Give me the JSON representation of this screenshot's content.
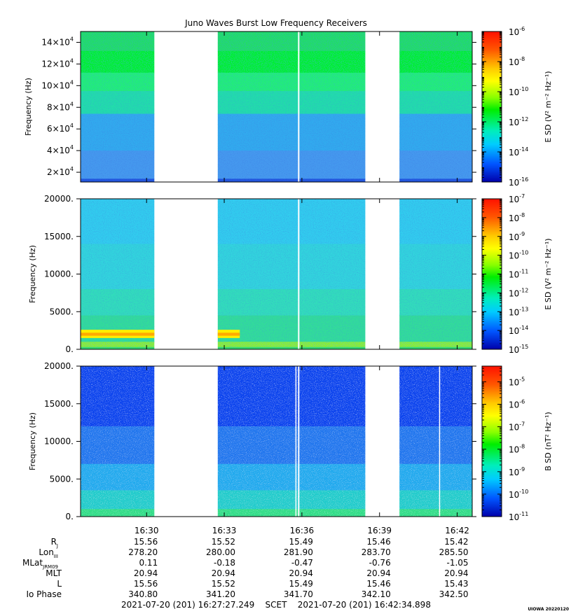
{
  "chart_data": [
    {
      "type": "heatmap",
      "title": "Juno Waves Burst Low Frequency Receivers",
      "ylabel": "Frequency (Hz)",
      "colorbar_label": "E SD (V² m⁻² Hz⁻¹)",
      "ylim": [
        11000,
        150000
      ],
      "y_ticks": [
        {
          "value": 20000,
          "mant": "2×10",
          "exp": "4"
        },
        {
          "value": 40000,
          "mant": "4×10",
          "exp": "4"
        },
        {
          "value": 60000,
          "mant": "6×10",
          "exp": "4"
        },
        {
          "value": 80000,
          "mant": "8×10",
          "exp": "4"
        },
        {
          "value": 100000,
          "mant": "10×10",
          "exp": "4"
        },
        {
          "value": 120000,
          "mant": "12×10",
          "exp": "4"
        },
        {
          "value": 140000,
          "mant": "14×10",
          "exp": "4"
        }
      ],
      "colorbar_range_log10": [
        -16,
        -6
      ],
      "colorbar_ticks": [
        {
          "log": -6,
          "label": "10",
          "exp": "-6"
        },
        {
          "log": -8,
          "label": "10",
          "exp": "-8"
        },
        {
          "log": -10,
          "label": "10",
          "exp": "-10"
        },
        {
          "log": -12,
          "label": "10",
          "exp": "-12"
        },
        {
          "log": -14,
          "label": "10",
          "exp": "-14"
        },
        {
          "log": -16,
          "label": "10",
          "exp": "-16"
        }
      ],
      "bands": [
        {
          "from": 150000,
          "to": 132000,
          "color": "#22dd66"
        },
        {
          "from": 132000,
          "to": 112000,
          "color": "#00ee33"
        },
        {
          "from": 112000,
          "to": 95000,
          "color": "#22ee77"
        },
        {
          "from": 95000,
          "to": 74000,
          "color": "#22ddaa"
        },
        {
          "from": 74000,
          "to": 40000,
          "color": "#33aaee"
        },
        {
          "from": 40000,
          "to": 14000,
          "color": "#4499ee"
        },
        {
          "from": 14000,
          "to": 11000,
          "color": "#2255dd"
        }
      ]
    },
    {
      "type": "heatmap",
      "ylabel": "Frequency (Hz)",
      "colorbar_label": "E SD (V² m⁻² Hz⁻¹)",
      "ylim": [
        0,
        20000
      ],
      "y_ticks": [
        {
          "value": 0,
          "label": "0."
        },
        {
          "value": 5000,
          "label": "5000."
        },
        {
          "value": 10000,
          "label": "10000."
        },
        {
          "value": 15000,
          "label": "15000."
        },
        {
          "value": 20000,
          "label": "20000."
        }
      ],
      "colorbar_range_log10": [
        -15,
        -7
      ],
      "colorbar_ticks": [
        {
          "log": -7,
          "label": "10",
          "exp": "-7"
        },
        {
          "log": -8,
          "label": "10",
          "exp": "-8"
        },
        {
          "log": -9,
          "label": "10",
          "exp": "-9"
        },
        {
          "log": -10,
          "label": "10",
          "exp": "-10"
        },
        {
          "log": -11,
          "label": "10",
          "exp": "-11"
        },
        {
          "log": -12,
          "label": "10",
          "exp": "-12"
        },
        {
          "log": -13,
          "label": "10",
          "exp": "-13"
        },
        {
          "log": -14,
          "label": "10",
          "exp": "-14"
        },
        {
          "log": -15,
          "label": "10",
          "exp": "-15"
        }
      ],
      "bands": [
        {
          "from": 20000,
          "to": 14000,
          "color": "#33ccee"
        },
        {
          "from": 14000,
          "to": 8000,
          "color": "#33d4dd"
        },
        {
          "from": 8000,
          "to": 4500,
          "color": "#33ddbb"
        },
        {
          "from": 4500,
          "to": 1000,
          "color": "#33dd99"
        },
        {
          "from": 1000,
          "to": 300,
          "color": "#88ee33"
        },
        {
          "from": 300,
          "to": 0,
          "color": "#33dd66"
        }
      ]
    },
    {
      "type": "heatmap",
      "ylabel": "Frequency (Hz)",
      "colorbar_label": "B SD (nT² Hz⁻¹)",
      "ylim": [
        0,
        20000
      ],
      "y_ticks": [
        {
          "value": 0,
          "label": "0."
        },
        {
          "value": 5000,
          "label": "5000."
        },
        {
          "value": 10000,
          "label": "10000."
        },
        {
          "value": 15000,
          "label": "15000."
        },
        {
          "value": 20000,
          "label": "20000."
        }
      ],
      "colorbar_range_log10": [
        -11,
        -4.3
      ],
      "colorbar_ticks": [
        {
          "log": -5,
          "label": "10",
          "exp": "-5"
        },
        {
          "log": -6,
          "label": "10",
          "exp": "-6"
        },
        {
          "log": -7,
          "label": "10",
          "exp": "-7"
        },
        {
          "log": -8,
          "label": "10",
          "exp": "-8"
        },
        {
          "log": -9,
          "label": "10",
          "exp": "-9"
        },
        {
          "log": -10,
          "label": "10",
          "exp": "-10"
        },
        {
          "log": -11,
          "label": "10",
          "exp": "-11"
        }
      ],
      "bands": [
        {
          "from": 20000,
          "to": 12000,
          "color": "#1144ee"
        },
        {
          "from": 12000,
          "to": 7000,
          "color": "#2277ee"
        },
        {
          "from": 7000,
          "to": 3500,
          "color": "#22aaee"
        },
        {
          "from": 3500,
          "to": 1000,
          "color": "#22cccc"
        },
        {
          "from": 1000,
          "to": 0,
          "color": "#33dd88"
        }
      ]
    }
  ],
  "time_axis": {
    "range_minutes": [
      987.45,
      1002.58
    ],
    "ticks": [
      {
        "minute": 990,
        "label": "16:30"
      },
      {
        "minute": 993,
        "label": "16:33"
      },
      {
        "minute": 996,
        "label": "16:36"
      },
      {
        "minute": 999,
        "label": "16:39"
      },
      {
        "minute": 1002,
        "label": "16:42"
      }
    ],
    "data_intervals": [
      [
        987.45,
        990.3
      ],
      [
        992.75,
        998.45
      ],
      [
        999.77,
        1002.58
      ]
    ]
  },
  "ephemeris": {
    "rows": [
      {
        "label": "R",
        "sub": "J",
        "values": [
          "15.56",
          "15.52",
          "15.49",
          "15.46",
          "15.42"
        ]
      },
      {
        "label": "Lon",
        "sub": "III",
        "values": [
          "278.20",
          "280.00",
          "281.90",
          "283.70",
          "285.50"
        ]
      },
      {
        "label": "MLat",
        "sub": "JRM09",
        "values": [
          "0.11",
          "-0.18",
          "-0.47",
          "-0.76",
          "-1.05"
        ]
      },
      {
        "label": "MLT",
        "sub": "",
        "values": [
          "20.94",
          "20.94",
          "20.94",
          "20.94",
          "20.94"
        ]
      },
      {
        "label": "L",
        "sub": "",
        "values": [
          "15.56",
          "15.52",
          "15.49",
          "15.46",
          "15.43"
        ]
      },
      {
        "label": "Io Phase",
        "sub": "",
        "values": [
          "340.80",
          "341.20",
          "341.70",
          "342.10",
          "342.50"
        ]
      }
    ]
  },
  "footer": {
    "range_text": "2021-07-20 (201) 16:27:27.249    SCET    2021-07-20 (201) 16:42:34.898",
    "credit": "UIOWA 20220120"
  }
}
